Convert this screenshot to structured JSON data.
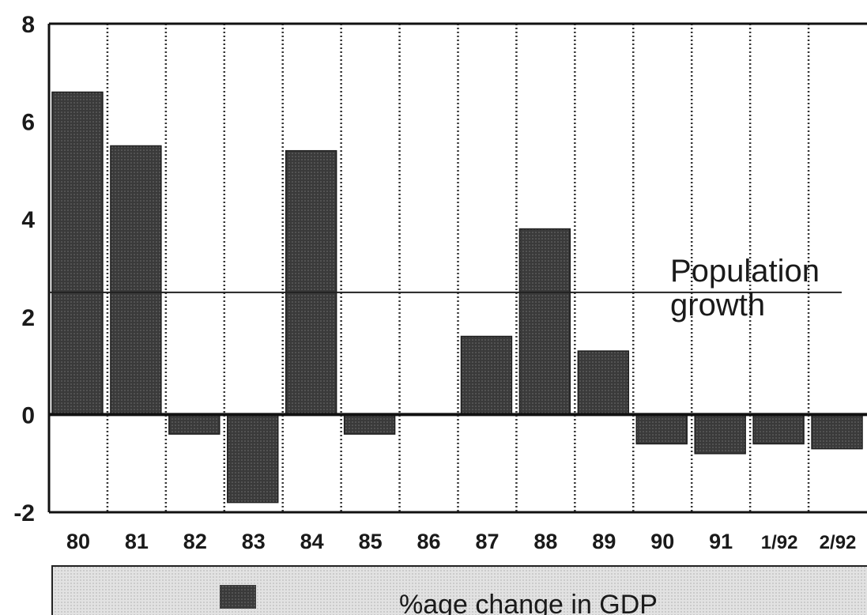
{
  "chart_data": {
    "type": "bar",
    "categories": [
      "80",
      "81",
      "82",
      "83",
      "84",
      "85",
      "86",
      "87",
      "88",
      "89",
      "90",
      "91",
      "1/92",
      "2/92"
    ],
    "series": [
      {
        "name": "%age change in GDP",
        "values": [
          6.6,
          5.5,
          -0.4,
          -1.8,
          5.4,
          -0.4,
          0,
          1.6,
          3.8,
          1.3,
          -0.6,
          -0.8,
          -0.6,
          -0.7
        ]
      }
    ],
    "ylim": [
      -2,
      8
    ],
    "yticks": [
      "8",
      "6",
      "4",
      "2",
      "0",
      "-2"
    ],
    "reference_line": {
      "value": 2.5,
      "label_lines": [
        "Population",
        "growth"
      ]
    },
    "grid": "vertical dotted separators",
    "legend_position": "bottom",
    "colors": {
      "bar": "#2e2e2e",
      "legend_band": "#d9d9d9"
    }
  }
}
